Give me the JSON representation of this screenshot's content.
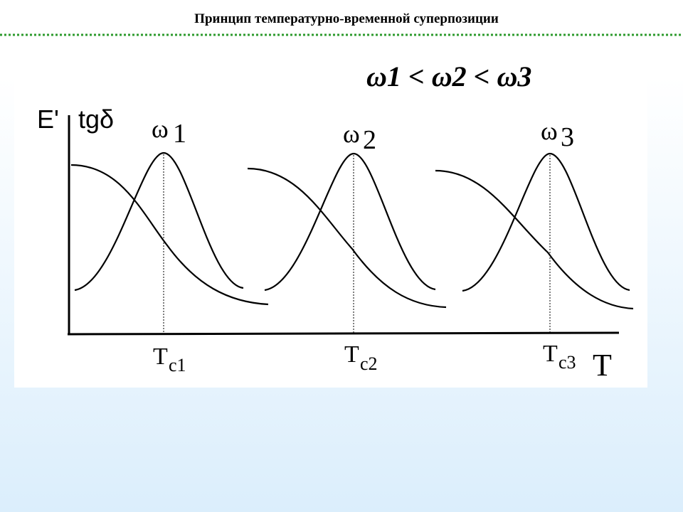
{
  "header": {
    "title": "Принцип температурно-временной суперпозиции"
  },
  "diagram": {
    "relation": "ω1 < ω2 < ω3",
    "y_labels": [
      "E'",
      "tgδ"
    ],
    "x_label": "T",
    "peaks": [
      {
        "omega": "ω",
        "index": "1",
        "t": "T",
        "sub": "c1"
      },
      {
        "omega": "ω",
        "index": "2",
        "t": "T",
        "sub": "c2"
      },
      {
        "omega": "ω",
        "index": "3",
        "t": "T",
        "sub": "c3"
      }
    ]
  }
}
